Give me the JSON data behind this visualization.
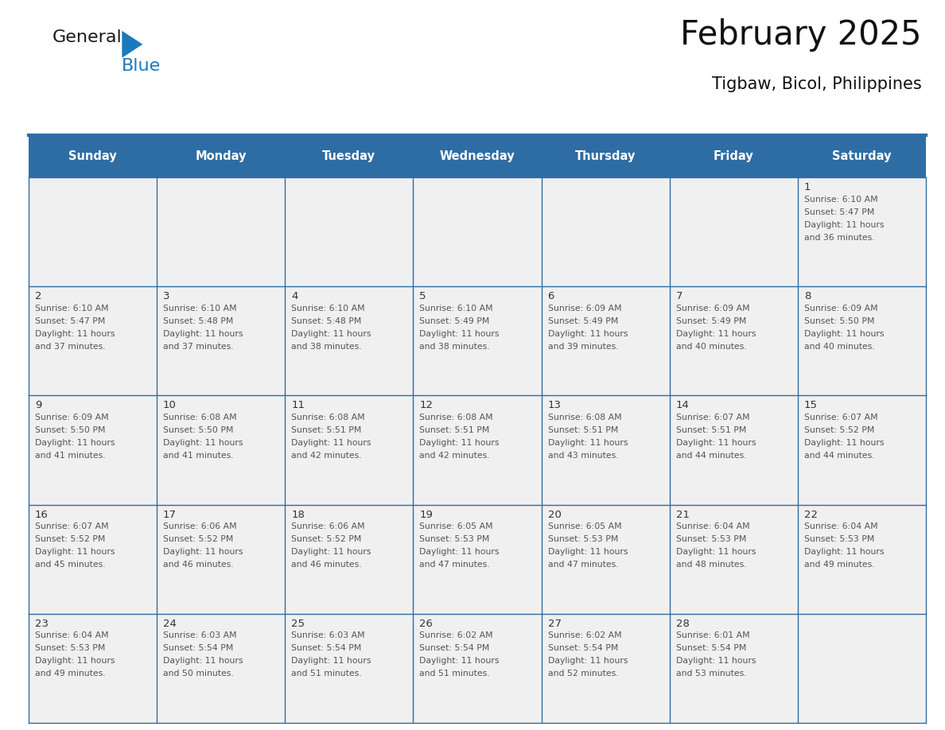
{
  "title": "February 2025",
  "subtitle": "Tigbaw, Bicol, Philippines",
  "header_bg": "#2E6DA4",
  "header_text_color": "#FFFFFF",
  "cell_bg_light": "#F0F0F0",
  "border_color": "#2E6DA4",
  "text_color_day": "#333333",
  "text_color_info": "#555555",
  "day_names": [
    "Sunday",
    "Monday",
    "Tuesday",
    "Wednesday",
    "Thursday",
    "Friday",
    "Saturday"
  ],
  "days_data": [
    {
      "day": 1,
      "col": 6,
      "row": 0,
      "sunrise": "6:10 AM",
      "sunset": "5:47 PM",
      "daylight": "11 hours and 36 minutes."
    },
    {
      "day": 2,
      "col": 0,
      "row": 1,
      "sunrise": "6:10 AM",
      "sunset": "5:47 PM",
      "daylight": "11 hours and 37 minutes."
    },
    {
      "day": 3,
      "col": 1,
      "row": 1,
      "sunrise": "6:10 AM",
      "sunset": "5:48 PM",
      "daylight": "11 hours and 37 minutes."
    },
    {
      "day": 4,
      "col": 2,
      "row": 1,
      "sunrise": "6:10 AM",
      "sunset": "5:48 PM",
      "daylight": "11 hours and 38 minutes."
    },
    {
      "day": 5,
      "col": 3,
      "row": 1,
      "sunrise": "6:10 AM",
      "sunset": "5:49 PM",
      "daylight": "11 hours and 38 minutes."
    },
    {
      "day": 6,
      "col": 4,
      "row": 1,
      "sunrise": "6:09 AM",
      "sunset": "5:49 PM",
      "daylight": "11 hours and 39 minutes."
    },
    {
      "day": 7,
      "col": 5,
      "row": 1,
      "sunrise": "6:09 AM",
      "sunset": "5:49 PM",
      "daylight": "11 hours and 40 minutes."
    },
    {
      "day": 8,
      "col": 6,
      "row": 1,
      "sunrise": "6:09 AM",
      "sunset": "5:50 PM",
      "daylight": "11 hours and 40 minutes."
    },
    {
      "day": 9,
      "col": 0,
      "row": 2,
      "sunrise": "6:09 AM",
      "sunset": "5:50 PM",
      "daylight": "11 hours and 41 minutes."
    },
    {
      "day": 10,
      "col": 1,
      "row": 2,
      "sunrise": "6:08 AM",
      "sunset": "5:50 PM",
      "daylight": "11 hours and 41 minutes."
    },
    {
      "day": 11,
      "col": 2,
      "row": 2,
      "sunrise": "6:08 AM",
      "sunset": "5:51 PM",
      "daylight": "11 hours and 42 minutes."
    },
    {
      "day": 12,
      "col": 3,
      "row": 2,
      "sunrise": "6:08 AM",
      "sunset": "5:51 PM",
      "daylight": "11 hours and 42 minutes."
    },
    {
      "day": 13,
      "col": 4,
      "row": 2,
      "sunrise": "6:08 AM",
      "sunset": "5:51 PM",
      "daylight": "11 hours and 43 minutes."
    },
    {
      "day": 14,
      "col": 5,
      "row": 2,
      "sunrise": "6:07 AM",
      "sunset": "5:51 PM",
      "daylight": "11 hours and 44 minutes."
    },
    {
      "day": 15,
      "col": 6,
      "row": 2,
      "sunrise": "6:07 AM",
      "sunset": "5:52 PM",
      "daylight": "11 hours and 44 minutes."
    },
    {
      "day": 16,
      "col": 0,
      "row": 3,
      "sunrise": "6:07 AM",
      "sunset": "5:52 PM",
      "daylight": "11 hours and 45 minutes."
    },
    {
      "day": 17,
      "col": 1,
      "row": 3,
      "sunrise": "6:06 AM",
      "sunset": "5:52 PM",
      "daylight": "11 hours and 46 minutes."
    },
    {
      "day": 18,
      "col": 2,
      "row": 3,
      "sunrise": "6:06 AM",
      "sunset": "5:52 PM",
      "daylight": "11 hours and 46 minutes."
    },
    {
      "day": 19,
      "col": 3,
      "row": 3,
      "sunrise": "6:05 AM",
      "sunset": "5:53 PM",
      "daylight": "11 hours and 47 minutes."
    },
    {
      "day": 20,
      "col": 4,
      "row": 3,
      "sunrise": "6:05 AM",
      "sunset": "5:53 PM",
      "daylight": "11 hours and 47 minutes."
    },
    {
      "day": 21,
      "col": 5,
      "row": 3,
      "sunrise": "6:04 AM",
      "sunset": "5:53 PM",
      "daylight": "11 hours and 48 minutes."
    },
    {
      "day": 22,
      "col": 6,
      "row": 3,
      "sunrise": "6:04 AM",
      "sunset": "5:53 PM",
      "daylight": "11 hours and 49 minutes."
    },
    {
      "day": 23,
      "col": 0,
      "row": 4,
      "sunrise": "6:04 AM",
      "sunset": "5:53 PM",
      "daylight": "11 hours and 49 minutes."
    },
    {
      "day": 24,
      "col": 1,
      "row": 4,
      "sunrise": "6:03 AM",
      "sunset": "5:54 PM",
      "daylight": "11 hours and 50 minutes."
    },
    {
      "day": 25,
      "col": 2,
      "row": 4,
      "sunrise": "6:03 AM",
      "sunset": "5:54 PM",
      "daylight": "11 hours and 51 minutes."
    },
    {
      "day": 26,
      "col": 3,
      "row": 4,
      "sunrise": "6:02 AM",
      "sunset": "5:54 PM",
      "daylight": "11 hours and 51 minutes."
    },
    {
      "day": 27,
      "col": 4,
      "row": 4,
      "sunrise": "6:02 AM",
      "sunset": "5:54 PM",
      "daylight": "11 hours and 52 minutes."
    },
    {
      "day": 28,
      "col": 5,
      "row": 4,
      "sunrise": "6:01 AM",
      "sunset": "5:54 PM",
      "daylight": "11 hours and 53 minutes."
    }
  ],
  "num_rows": 5,
  "logo_color_general": "#1a1a1a",
  "logo_color_blue": "#1a7abf",
  "logo_triangle_color": "#1a7abf"
}
